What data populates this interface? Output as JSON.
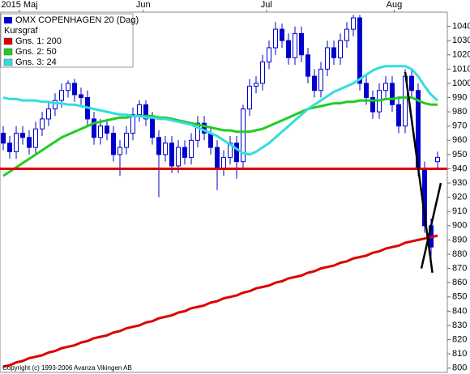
{
  "chart_data": {
    "type": "candlestick",
    "title": "OMX COPENHAGEN 20 (Dag)",
    "subtitle": "Kursgraf",
    "copyright": "Copyright (c) 1993-2006 Avanza Vikingen AB",
    "candle_color": "#0000cc",
    "xlim": [
      -0.5,
      68.5
    ],
    "xticks": [
      {
        "value": 2.5,
        "label": "2015 Maj"
      },
      {
        "value": 21.6,
        "label": "Jun"
      },
      {
        "value": 40.6,
        "label": "Jul"
      },
      {
        "value": 60.3,
        "label": "Aug"
      }
    ],
    "ylim": [
      797,
      1050
    ],
    "yticks": [
      800,
      810,
      820,
      830,
      840,
      850,
      860,
      870,
      880,
      890,
      900,
      910,
      920,
      930,
      940,
      950,
      960,
      970,
      980,
      990,
      1000,
      1010,
      1020,
      1030,
      1040
    ],
    "open": [
      965,
      958,
      952,
      965,
      962,
      955,
      968,
      975,
      982,
      988,
      995,
      1000,
      992,
      990,
      975,
      962,
      970,
      965,
      950,
      955,
      965,
      978,
      985,
      975,
      962,
      950,
      958,
      942,
      955,
      948,
      960,
      972,
      965,
      955,
      940,
      948,
      958,
      945,
      982,
      998,
      1000,
      1015,
      1025,
      1038,
      1030,
      1018,
      1035,
      1020,
      1005,
      995,
      1010,
      1025,
      1018,
      1030,
      1038,
      1046,
      1000,
      990,
      980,
      995,
      1000,
      985,
      970,
      1005,
      995,
      940,
      900,
      945
    ],
    "high": [
      970,
      963,
      970,
      970,
      967,
      973,
      980,
      987,
      993,
      1000,
      1002,
      1003,
      997,
      995,
      980,
      975,
      975,
      970,
      960,
      970,
      983,
      988,
      988,
      980,
      967,
      963,
      963,
      960,
      960,
      965,
      977,
      977,
      970,
      960,
      953,
      963,
      963,
      985,
      1003,
      1005,
      1020,
      1030,
      1043,
      1042,
      1035,
      1040,
      1040,
      1025,
      1010,
      1015,
      1030,
      1030,
      1035,
      1043,
      1048,
      1048,
      1005,
      995,
      1000,
      1005,
      1005,
      990,
      1010,
      1010,
      1000,
      945,
      905,
      952
    ],
    "low": [
      953,
      947,
      947,
      957,
      950,
      950,
      963,
      970,
      977,
      983,
      990,
      987,
      985,
      970,
      957,
      957,
      960,
      945,
      935,
      950,
      960,
      973,
      970,
      957,
      920,
      945,
      937,
      937,
      943,
      943,
      955,
      960,
      950,
      925,
      935,
      943,
      933,
      940,
      977,
      993,
      995,
      1010,
      1020,
      1025,
      1013,
      1013,
      1015,
      1000,
      990,
      990,
      1005,
      1013,
      1013,
      1025,
      1033,
      995,
      985,
      975,
      975,
      990,
      980,
      965,
      965,
      990,
      935,
      895,
      870,
      940
    ],
    "close": [
      958,
      952,
      965,
      962,
      955,
      968,
      975,
      982,
      988,
      995,
      1000,
      992,
      990,
      975,
      962,
      970,
      965,
      950,
      955,
      965,
      978,
      985,
      975,
      962,
      950,
      958,
      942,
      955,
      948,
      960,
      972,
      965,
      955,
      940,
      948,
      958,
      945,
      982,
      998,
      1000,
      1015,
      1025,
      1038,
      1030,
      1018,
      1035,
      1020,
      1005,
      995,
      1010,
      1025,
      1018,
      1030,
      1038,
      1046,
      1000,
      990,
      980,
      995,
      1000,
      985,
      970,
      1005,
      995,
      940,
      900,
      885,
      948
    ],
    "series": [
      {
        "name": "Gns. 1: 200",
        "color": "#dd0000",
        "values": [
          801,
          802,
          804,
          805,
          807,
          808,
          809,
          811,
          812,
          814,
          815,
          816,
          818,
          819,
          821,
          822,
          823,
          825,
          826,
          828,
          829,
          830,
          832,
          833,
          835,
          836,
          837,
          839,
          840,
          842,
          843,
          844,
          846,
          847,
          849,
          850,
          851,
          853,
          854,
          856,
          857,
          858,
          860,
          861,
          863,
          864,
          865,
          867,
          868,
          870,
          871,
          872,
          874,
          875,
          877,
          878,
          879,
          881,
          882,
          884,
          885,
          886,
          888,
          889,
          890,
          891,
          892,
          893
        ]
      },
      {
        "name": "Gns. 2: 50",
        "color": "#22cc22",
        "values": [
          935,
          938,
          941,
          944,
          947,
          950,
          953,
          956,
          959,
          962,
          964,
          966,
          968,
          970,
          972,
          973,
          974,
          975,
          976,
          976,
          977,
          977,
          977,
          977,
          976,
          976,
          975,
          974,
          973,
          972,
          971,
          970,
          969,
          968,
          967,
          967,
          966,
          966,
          966,
          967,
          968,
          970,
          972,
          974,
          976,
          978,
          980,
          982,
          983,
          984,
          985,
          986,
          986,
          987,
          987,
          988,
          988,
          988,
          988,
          989,
          989,
          990,
          990,
          990,
          988,
          986,
          985,
          985
        ]
      },
      {
        "name": "Gns. 3: 24",
        "color": "#33dddd",
        "values": [
          990,
          989,
          989,
          988,
          988,
          988,
          987,
          987,
          986,
          986,
          985,
          985,
          984,
          983,
          982,
          981,
          980,
          979,
          978,
          978,
          977,
          977,
          976,
          976,
          975,
          975,
          974,
          973,
          972,
          971,
          969,
          967,
          965,
          963,
          960,
          957,
          954,
          951,
          950,
          952,
          955,
          958,
          962,
          966,
          970,
          974,
          978,
          982,
          985,
          988,
          991,
          994,
          996,
          998,
          1000,
          1003,
          1006,
          1009,
          1011,
          1012,
          1012,
          1012,
          1012,
          1010,
          1005,
          998,
          992,
          988
        ]
      }
    ],
    "hlines": [
      {
        "value": 940,
        "color": "#dd0000"
      }
    ],
    "trend_lines": [
      {
        "x": [
          62,
          66.2
        ],
        "y": [
          1008,
          867
        ],
        "color": "#000000"
      },
      {
        "x": [
          64.5,
          67.5
        ],
        "y": [
          870,
          930
        ],
        "color": "#000000"
      }
    ]
  }
}
